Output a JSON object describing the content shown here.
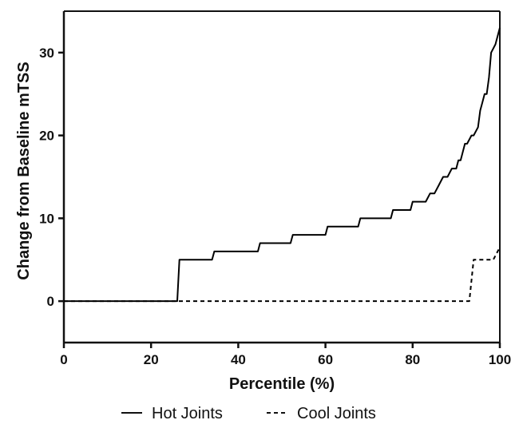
{
  "chart_data": {
    "type": "line",
    "title": "",
    "xlabel": "Percentile (%)",
    "ylabel": "Change from  Baseline mTSS",
    "xlim": [
      0,
      100
    ],
    "ylim": [
      -5,
      35
    ],
    "x_ticks": [
      0,
      20,
      40,
      60,
      80,
      100
    ],
    "y_ticks": [
      0,
      10,
      20,
      30
    ],
    "x_tick_labels": [
      "0",
      "20",
      "40",
      "60",
      "80",
      "100"
    ],
    "y_tick_labels": [
      "0",
      "10",
      "20",
      "30"
    ],
    "grid": false,
    "legend_position": "bottom",
    "series": [
      {
        "name": "Hot Joints",
        "line_style": "solid",
        "color": "#000000",
        "x": [
          0,
          26,
          26.5,
          34,
          34.5,
          44.5,
          45,
          52,
          52.5,
          60,
          60.5,
          67.5,
          68,
          75,
          75.5,
          79.5,
          80,
          83,
          84,
          85,
          86,
          87,
          88,
          89,
          90,
          90.5,
          91,
          92,
          92.5,
          93.5,
          94,
          95,
          95.5,
          96,
          96.5,
          97,
          97.5,
          98,
          99,
          100
        ],
        "y": [
          0,
          0,
          5,
          5,
          6,
          6,
          7,
          7,
          8,
          8,
          9,
          9,
          10,
          10,
          11,
          11,
          12,
          12,
          13,
          13,
          14,
          15,
          15,
          16,
          16,
          17,
          17,
          19,
          19,
          20,
          20,
          21,
          23,
          24,
          25,
          25,
          27,
          30,
          31,
          33
        ]
      },
      {
        "name": "Cool Joints",
        "line_style": "dashed",
        "color": "#000000",
        "x": [
          0,
          93,
          94,
          97.5,
          98.5,
          100
        ],
        "y": [
          0,
          0,
          5,
          5,
          5,
          6.5
        ]
      }
    ]
  },
  "legend": {
    "items": [
      {
        "label": "Hot Joints",
        "dash": "solid"
      },
      {
        "label": "Cool Joints",
        "dash": "dashed"
      }
    ]
  }
}
